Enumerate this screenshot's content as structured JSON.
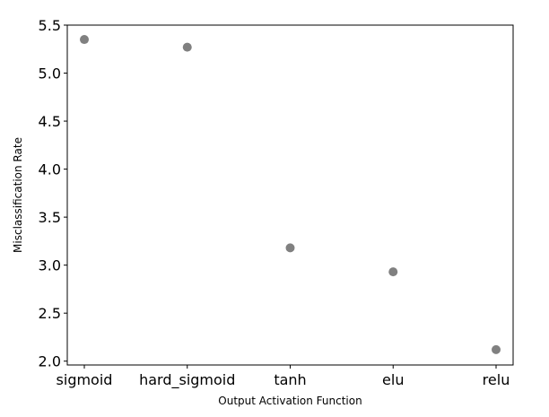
{
  "chart_data": {
    "type": "scatter",
    "title": "",
    "xlabel": "Output Activation Function",
    "ylabel": "Misclassification Rate",
    "categories": [
      "sigmoid",
      "hard_sigmoid",
      "tanh",
      "elu",
      "relu"
    ],
    "values": [
      5.35,
      5.27,
      3.18,
      2.93,
      2.12
    ],
    "ylim": [
      1.96,
      5.5
    ],
    "yticks": [
      2.0,
      2.5,
      3.0,
      3.5,
      4.0,
      4.5,
      5.0,
      5.5
    ],
    "ytick_labels": [
      "2.0",
      "2.5",
      "3.0",
      "3.5",
      "4.0",
      "4.5",
      "5.0",
      "5.5"
    ],
    "grid": false,
    "marker_color": "#808080"
  }
}
